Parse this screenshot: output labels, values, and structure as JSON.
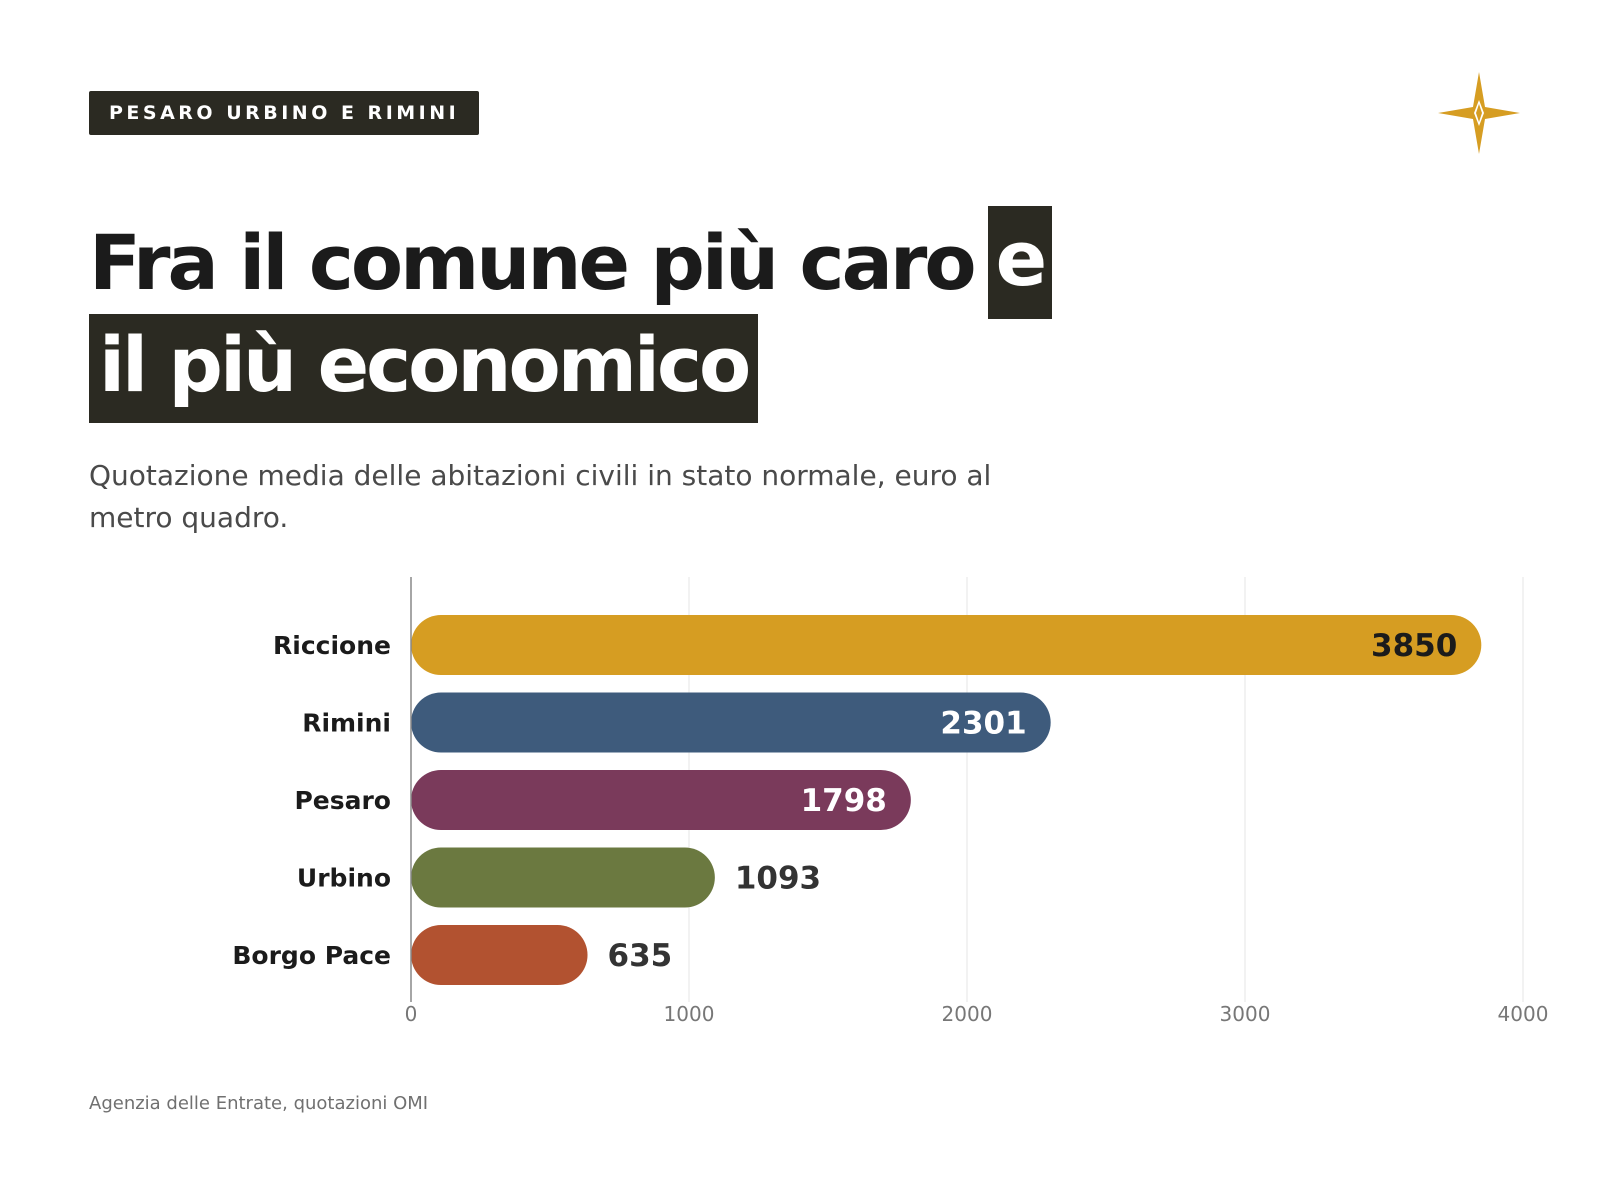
{
  "kicker": "PESARO URBINO E RIMINI",
  "title": {
    "line1": "Fra il comune più caro",
    "line1_highlight": "e",
    "line2_highlight": "il più economico"
  },
  "subtitle": "Quotazione media delle abitazioni civili in stato normale, euro al metro quadro.",
  "source": "Agenzia delle Entrate, quotazioni OMI",
  "logo_icon": "compass-star-icon",
  "colors": {
    "dark": "#2b2a22",
    "gold": "#d69d22",
    "blue": "#3e5b7c",
    "plum": "#7a3a5b",
    "olive": "#6b7940",
    "rust": "#b25230"
  },
  "chart_data": {
    "type": "bar",
    "orientation": "horizontal",
    "categories": [
      "Riccione",
      "Rimini",
      "Pesaro",
      "Urbino",
      "Borgo Pace"
    ],
    "values": [
      3850,
      2301,
      1798,
      1093,
      635
    ],
    "bar_colors": [
      "#d69d22",
      "#3e5b7c",
      "#7a3a5b",
      "#6b7940",
      "#b25230"
    ],
    "label_colors": [
      "#1b1b1b",
      "#ffffff",
      "#ffffff",
      "#333333",
      "#333333"
    ],
    "label_inside": [
      true,
      true,
      true,
      false,
      false
    ],
    "xlim": [
      0,
      4000
    ],
    "xticks": [
      0,
      1000,
      2000,
      3000,
      4000
    ],
    "grid": true,
    "xlabel": "",
    "ylabel": ""
  }
}
